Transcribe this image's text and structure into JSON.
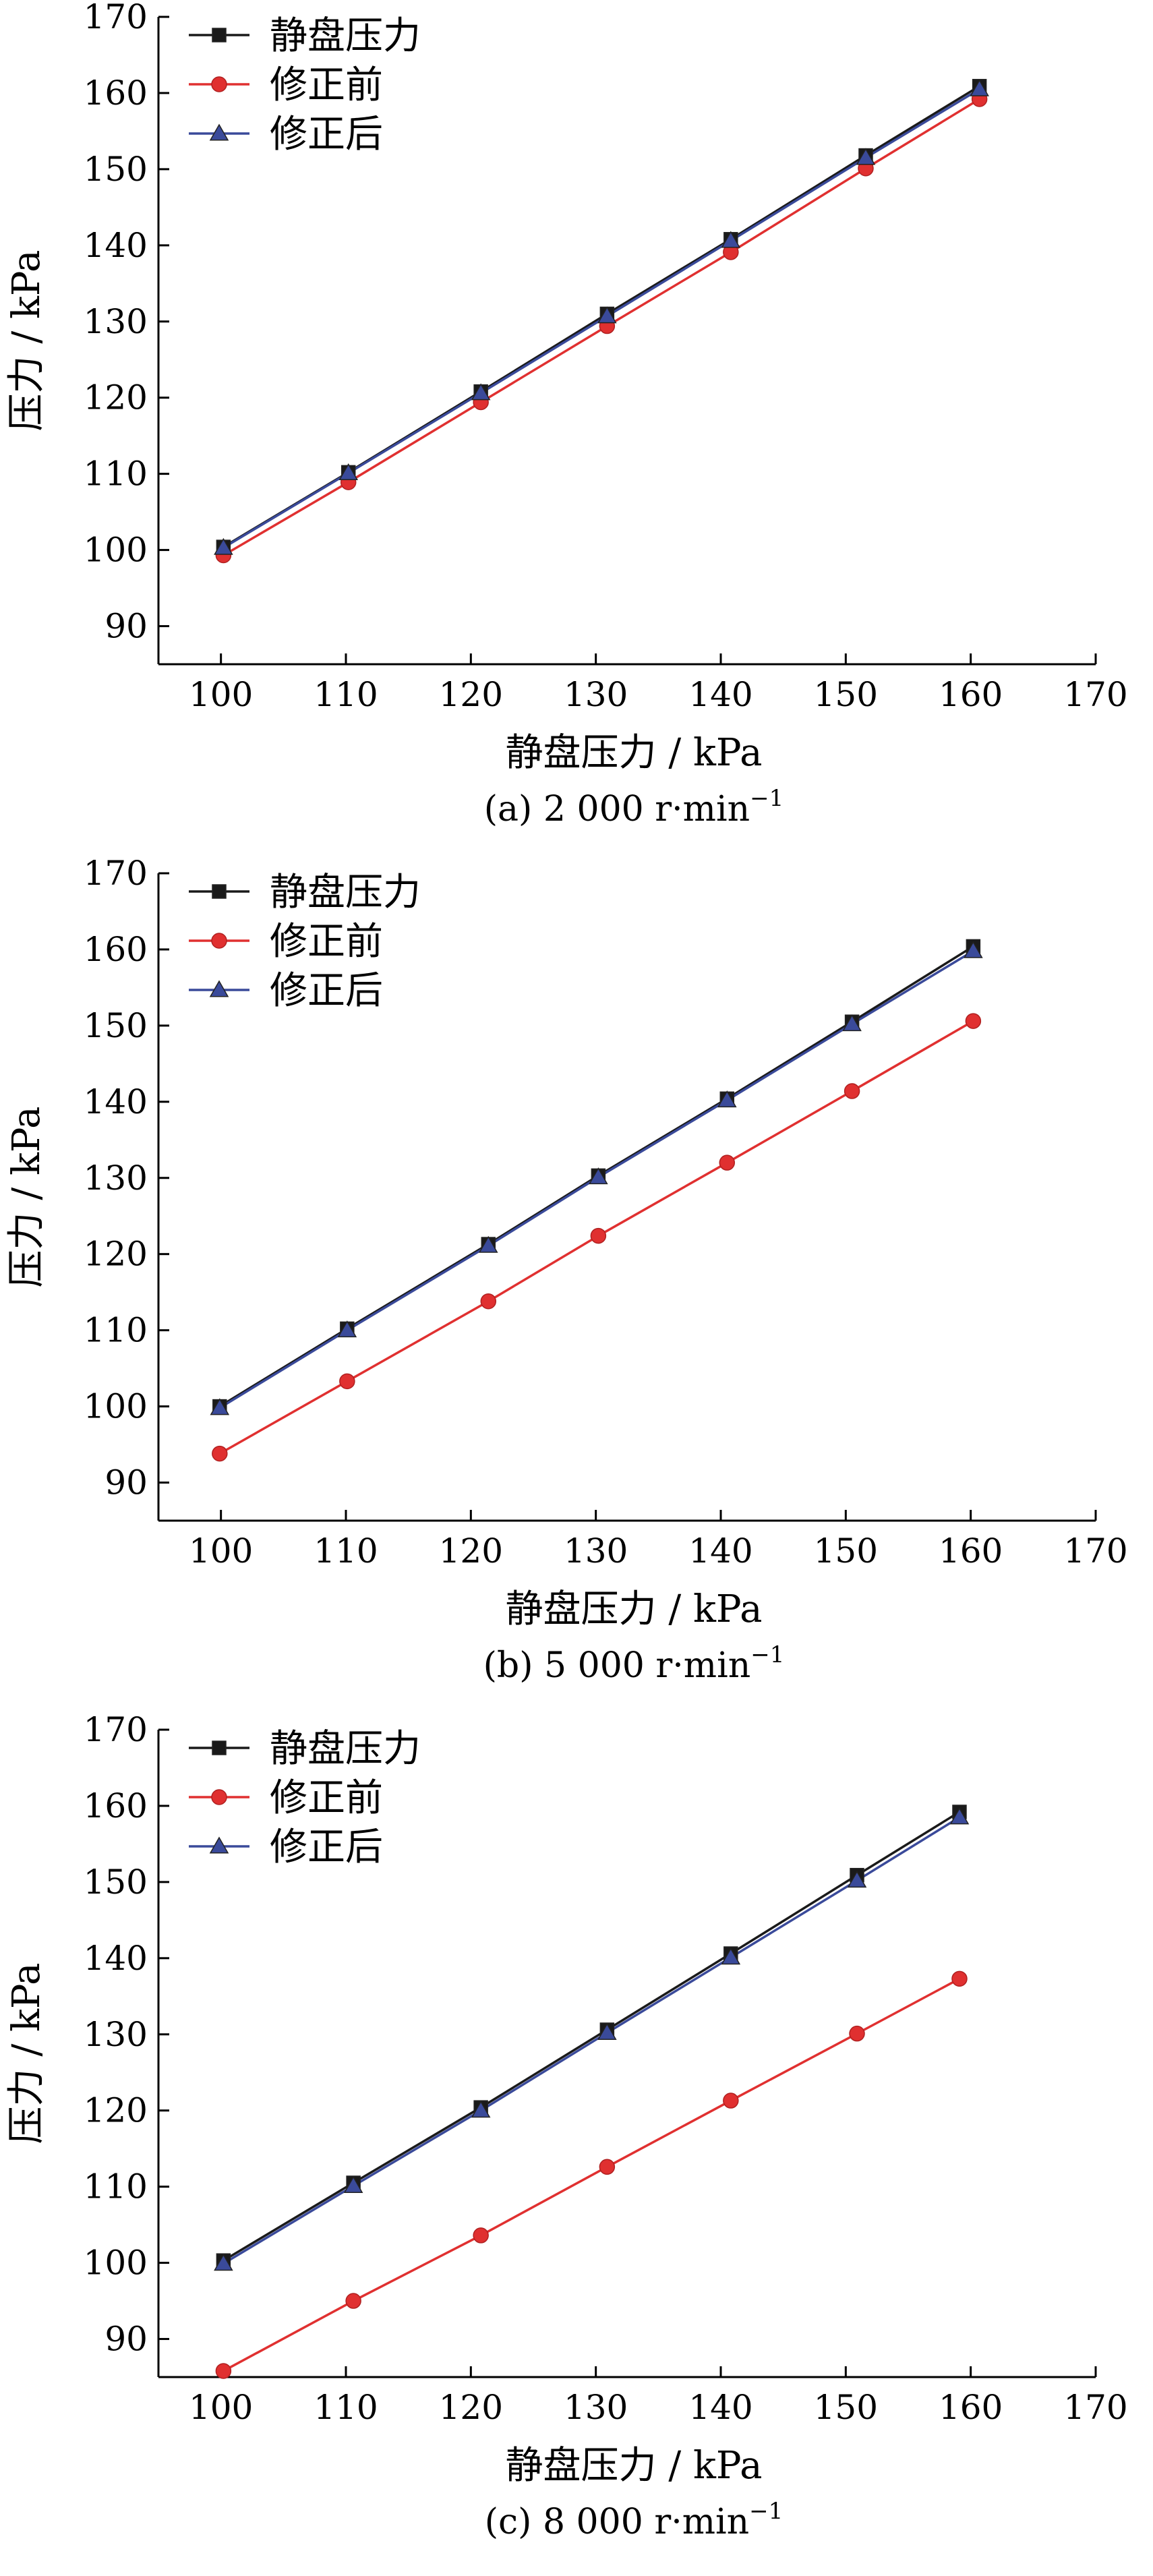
{
  "chart_data": [
    {
      "type": "line",
      "caption": "(a) 2 000 r·min",
      "caption_sup": "−1",
      "xlabel": "静盘压力 / kPa",
      "ylabel": "压力 / kPa",
      "xlim": [
        95,
        170
      ],
      "ylim": [
        85,
        170
      ],
      "xticks": [
        100,
        110,
        120,
        130,
        140,
        150,
        160,
        170
      ],
      "yticks": [
        90,
        100,
        110,
        120,
        130,
        140,
        150,
        160,
        170
      ],
      "legend_position": "top-left",
      "grid": false,
      "series": [
        {
          "name": "静盘压力",
          "color": "#1a1a1a",
          "marker": "square",
          "x": [
            100.2,
            110.2,
            120.8,
            130.9,
            140.8,
            151.6,
            160.7
          ],
          "y": [
            100.4,
            110.2,
            120.8,
            131.0,
            140.8,
            151.8,
            160.9
          ]
        },
        {
          "name": "修正前",
          "color": "#e03030",
          "marker": "circle",
          "x": [
            100.2,
            110.2,
            120.8,
            130.9,
            140.8,
            151.6,
            160.7
          ],
          "y": [
            99.3,
            108.9,
            119.4,
            129.4,
            139.1,
            150.1,
            159.2
          ]
        },
        {
          "name": "修正后",
          "color": "#3a4a9a",
          "marker": "triangle",
          "x": [
            100.2,
            110.2,
            120.8,
            130.9,
            140.8,
            151.6,
            160.7
          ],
          "y": [
            100.3,
            110.1,
            120.6,
            130.7,
            140.6,
            151.5,
            160.5
          ]
        }
      ]
    },
    {
      "type": "line",
      "caption": "(b) 5 000 r·min",
      "caption_sup": "−1",
      "xlabel": "静盘压力 / kPa",
      "ylabel": "压力 / kPa",
      "xlim": [
        95,
        170
      ],
      "ylim": [
        85,
        170
      ],
      "xticks": [
        100,
        110,
        120,
        130,
        140,
        150,
        160,
        170
      ],
      "yticks": [
        90,
        100,
        110,
        120,
        130,
        140,
        150,
        160,
        170
      ],
      "legend_position": "top-left",
      "grid": false,
      "series": [
        {
          "name": "静盘压力",
          "color": "#1a1a1a",
          "marker": "square",
          "x": [
            99.9,
            110.1,
            121.4,
            130.2,
            140.5,
            150.5,
            160.2
          ],
          "y": [
            100.0,
            110.2,
            121.3,
            130.3,
            140.4,
            150.5,
            160.4
          ]
        },
        {
          "name": "修正前",
          "color": "#e03030",
          "marker": "circle",
          "x": [
            99.9,
            110.1,
            121.4,
            130.2,
            140.5,
            150.5,
            160.2
          ],
          "y": [
            93.8,
            103.3,
            113.8,
            122.4,
            132.0,
            141.4,
            150.6
          ]
        },
        {
          "name": "修正后",
          "color": "#3a4a9a",
          "marker": "triangle",
          "x": [
            99.9,
            110.1,
            121.4,
            130.2,
            140.5,
            150.5,
            160.2
          ],
          "y": [
            99.8,
            110.0,
            121.1,
            130.1,
            140.2,
            150.2,
            159.8
          ]
        }
      ]
    },
    {
      "type": "line",
      "caption": "(c) 8 000 r·min",
      "caption_sup": "−1",
      "xlabel": "静盘压力 / kPa",
      "ylabel": "压力 / kPa",
      "xlim": [
        95,
        170
      ],
      "ylim": [
        85,
        170
      ],
      "xticks": [
        100,
        110,
        120,
        130,
        140,
        150,
        160,
        170
      ],
      "yticks": [
        90,
        100,
        110,
        120,
        130,
        140,
        150,
        160,
        170
      ],
      "legend_position": "top-left",
      "grid": false,
      "series": [
        {
          "name": "静盘压力",
          "color": "#1a1a1a",
          "marker": "square",
          "x": [
            100.2,
            110.6,
            120.8,
            130.9,
            140.8,
            150.9,
            159.1
          ],
          "y": [
            100.3,
            110.5,
            120.4,
            130.6,
            140.6,
            150.9,
            159.2
          ]
        },
        {
          "name": "修正前",
          "color": "#e03030",
          "marker": "circle",
          "x": [
            100.2,
            110.6,
            120.8,
            130.9,
            140.8,
            150.9,
            159.1
          ],
          "y": [
            85.8,
            95.0,
            103.6,
            112.6,
            121.3,
            130.1,
            137.3
          ]
        },
        {
          "name": "修正后",
          "color": "#3a4a9a",
          "marker": "triangle",
          "x": [
            100.2,
            110.6,
            120.8,
            130.9,
            140.8,
            150.9,
            159.1
          ],
          "y": [
            99.9,
            110.1,
            120.0,
            130.2,
            140.1,
            150.2,
            158.5
          ]
        }
      ]
    }
  ]
}
